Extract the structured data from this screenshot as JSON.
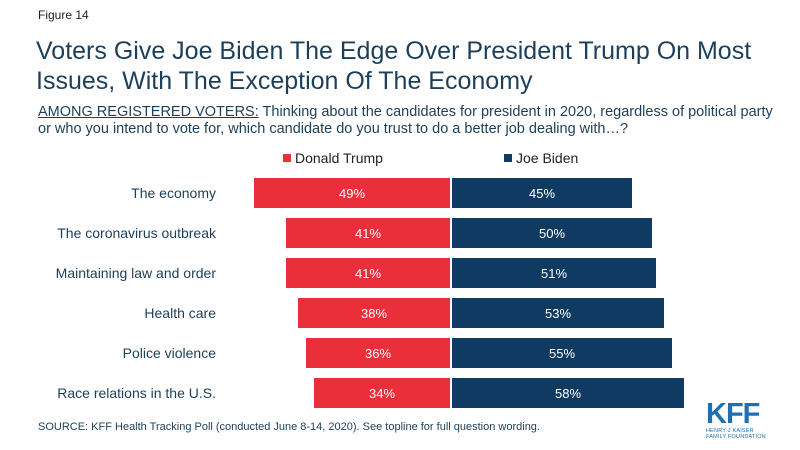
{
  "figure_label": "Figure 14",
  "title": "Voters Give Joe Biden The Edge Over President Trump On Most Issues, With The Exception Of The Economy",
  "question_prefix": "AMONG REGISTERED VOTERS:",
  "question_text": " Thinking about the candidates for president in 2020, regardless of political party or who you intend to vote for, which candidate do you trust to do a better job dealing with…?",
  "source": "SOURCE: KFF Health Tracking Poll (conducted June 8-14, 2020). See topline for full question wording.",
  "logo": {
    "mark": "KFF",
    "line1": "HENRY J KAISER",
    "line2": "FAMILY FOUNDATION"
  },
  "colors": {
    "trump": "#ea2e3a",
    "biden": "#0f3b63",
    "label_text": "#1c3f5a"
  },
  "chart_data": {
    "type": "bar",
    "orientation": "diverging-horizontal",
    "categories": [
      "The economy",
      "The coronavirus outbreak",
      "Maintaining law and order",
      "Health care",
      "Police violence",
      "Race relations in the U.S."
    ],
    "series": [
      {
        "name": "Donald Trump",
        "color": "#ea2e3a",
        "values": [
          49,
          41,
          41,
          38,
          36,
          34
        ],
        "labels": [
          "49%",
          "41%",
          "41%",
          "38%",
          "36%",
          "34%"
        ]
      },
      {
        "name": "Joe Biden",
        "color": "#0f3b63",
        "values": [
          45,
          50,
          51,
          53,
          55,
          58
        ],
        "labels": [
          "45%",
          "50%",
          "51%",
          "53%",
          "55%",
          "58%"
        ]
      }
    ],
    "value_unit": "%",
    "legend_position": "top",
    "grid": false
  }
}
